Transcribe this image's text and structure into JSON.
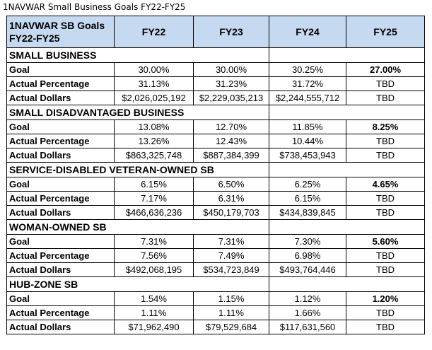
{
  "caption": "1NAVWAR Small Business Goals FY22-FY25",
  "header": {
    "corner": "1NAVWAR SB Goals FY22-FY25",
    "years": [
      "FY22",
      "FY23",
      "FY24",
      "FY25"
    ]
  },
  "colors": {
    "header_fill": "#c5d9f1",
    "border": "#000000"
  },
  "sections": [
    {
      "name": "SMALL BUSINESS",
      "rows": [
        {
          "label": "Goal",
          "values": [
            "30.00%",
            "30.00%",
            "30.25%",
            "27.00%"
          ]
        },
        {
          "label": "Actual Percentage",
          "values": [
            "31.13%",
            "31.23%",
            "31.72%",
            "TBD"
          ]
        },
        {
          "label": "Actual Dollars",
          "values": [
            "$2,026,025,192",
            "$2,229,035,213",
            "$2,244,555,712",
            "TBD"
          ]
        }
      ]
    },
    {
      "name": "SMALL DISADVANTAGED BUSINESS",
      "rows": [
        {
          "label": "Goal",
          "values": [
            "13.08%",
            "12.70%",
            "11.85%",
            "8.25%"
          ]
        },
        {
          "label": "Actual Percentage",
          "values": [
            "13.26%",
            "12.43%",
            "10.44%",
            "TBD"
          ]
        },
        {
          "label": "Actual Dollars",
          "values": [
            "$863,325,748",
            "$887,384,399",
            "$738,453,943",
            "TBD"
          ]
        }
      ]
    },
    {
      "name": "SERVICE-DISABLED VETERAN-OWNED SB",
      "rows": [
        {
          "label": "Goal",
          "values": [
            "6.15%",
            "6.50%",
            "6.25%",
            "4.65%"
          ]
        },
        {
          "label": "Actual Percentage",
          "values": [
            "7.17%",
            "6.31%",
            "6.15%",
            "TBD"
          ]
        },
        {
          "label": "Actual Dollars",
          "values": [
            "$466,636,236",
            "$450,179,703",
            "$434,839,845",
            "TBD"
          ]
        }
      ]
    },
    {
      "name": "WOMAN-OWNED SB",
      "rows": [
        {
          "label": "Goal",
          "values": [
            "7.31%",
            "7.31%",
            "7.30%",
            "5.60%"
          ]
        },
        {
          "label": "Actual Percentage",
          "values": [
            "7.56%",
            "7.49%",
            "6.98%",
            "TBD"
          ]
        },
        {
          "label": "Actual Dollars",
          "values": [
            "$492,068,195",
            "$534,723,849",
            "$493,764,446",
            "TBD"
          ]
        }
      ]
    },
    {
      "name": "HUB-ZONE SB",
      "rows": [
        {
          "label": "Goal",
          "values": [
            "1.54%",
            "1.15%",
            "1.12%",
            "1.20%"
          ]
        },
        {
          "label": "Actual Percentage",
          "values": [
            "1.11%",
            "1.11%",
            "1.66%",
            "TBD"
          ]
        },
        {
          "label": "Actual Dollars",
          "values": [
            "$71,962,490",
            "$79,529,684",
            "$117,631,560",
            "TBD"
          ]
        }
      ]
    }
  ]
}
